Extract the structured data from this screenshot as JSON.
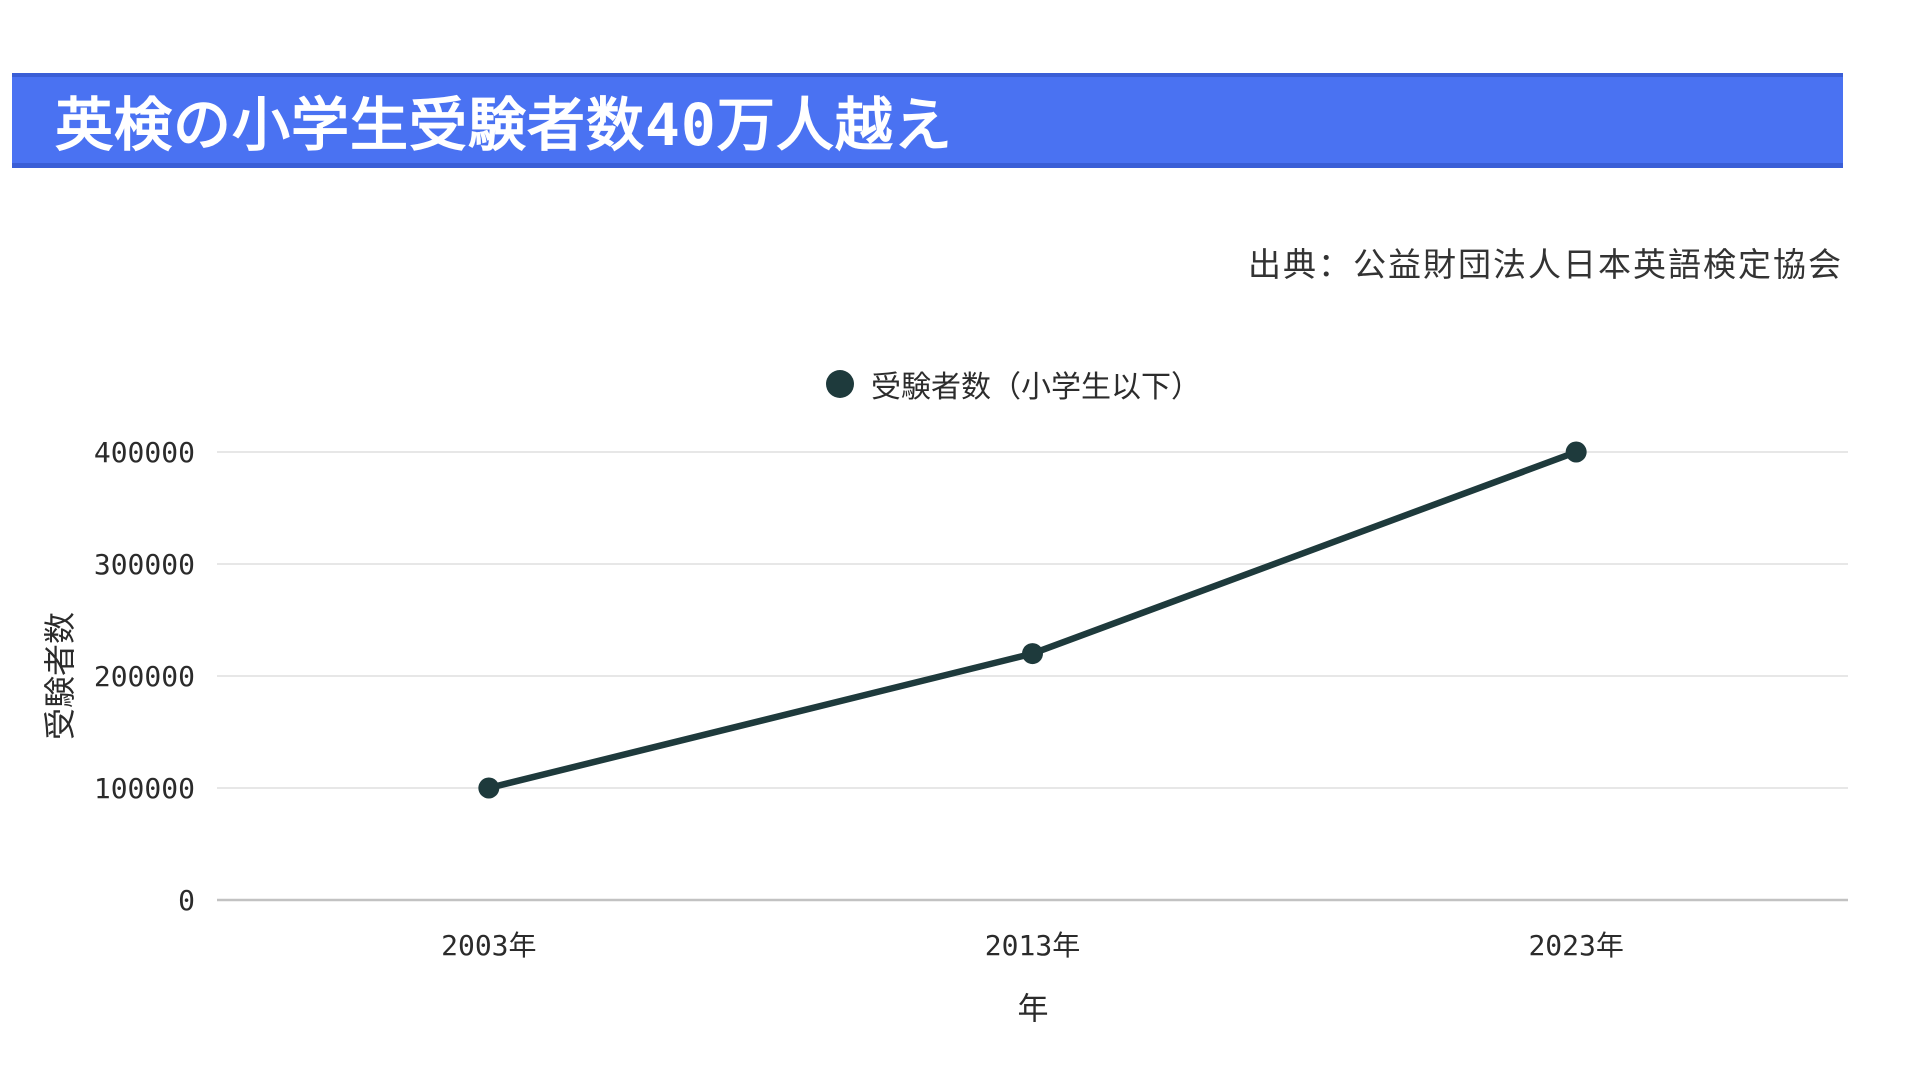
{
  "page": {
    "background": "#ffffff"
  },
  "header": {
    "title": "英検の小学生受験者数40万人越え",
    "background": "#4a72f2",
    "border_color": "#3a5ed6",
    "text_color": "#ffffff"
  },
  "source": {
    "text": "出典：公益財団法人日本英語検定協会"
  },
  "chart_data": {
    "type": "line",
    "title": "",
    "legend": {
      "label": "受験者数（小学生以下）",
      "marker_color": "#1e3a3c",
      "position": "top-center"
    },
    "categories": [
      "2003年",
      "2013年",
      "2023年"
    ],
    "series": [
      {
        "name": "受験者数（小学生以下）",
        "values": [
          100000,
          220000,
          400000
        ],
        "color": "#1e3a3c"
      }
    ],
    "xlabel": "年",
    "ylabel": "受験者数",
    "ylim": [
      0,
      400000
    ],
    "yticks": [
      0,
      100000,
      200000,
      300000,
      400000
    ],
    "grid": "horizontal",
    "gridline_color": "#e7e7e7",
    "baseline_color": "#c2c2c2",
    "tick_text_color": "#2b2b2b",
    "line_width": 6.5,
    "point_radius": 10.5
  }
}
